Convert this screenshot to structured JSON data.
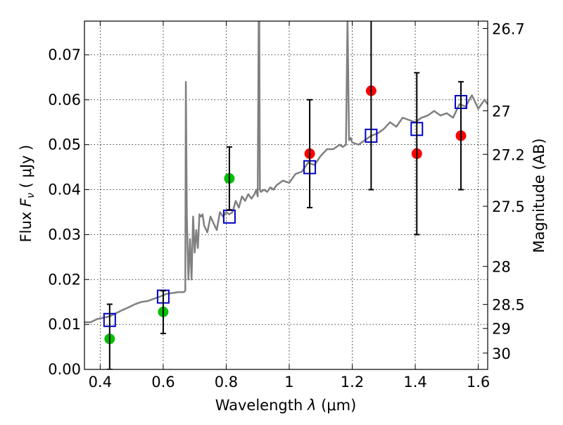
{
  "chart_data": {
    "type": "scatter",
    "xlabel_prefix": "Wavelength ",
    "xlabel_symbol": "λ",
    "xlabel_unit": " (μm)",
    "ylabel_prefix": "Flux ",
    "ylabel_symbol": "F",
    "ylabel_subscript": "ν",
    "ylabel_unit": " ( μJy )",
    "ylabel_right": "Magnitude (AB)",
    "xlim": [
      0.35,
      1.63
    ],
    "ylim": [
      0.0,
      0.0775
    ],
    "grid": true,
    "x_ticks": [
      {
        "value": 0.4,
        "label": "0.4"
      },
      {
        "value": 0.6,
        "label": "0.6"
      },
      {
        "value": 0.8,
        "label": "0.8"
      },
      {
        "value": 1.0,
        "label": "1"
      },
      {
        "value": 1.2,
        "label": "1.2"
      },
      {
        "value": 1.4,
        "label": "1.4"
      },
      {
        "value": 1.6,
        "label": "1.6"
      }
    ],
    "y_ticks": [
      {
        "value": 0.0,
        "label": "0.00"
      },
      {
        "value": 0.01,
        "label": "0.01"
      },
      {
        "value": 0.02,
        "label": "0.02"
      },
      {
        "value": 0.03,
        "label": "0.03"
      },
      {
        "value": 0.04,
        "label": "0.04"
      },
      {
        "value": 0.05,
        "label": "0.05"
      },
      {
        "value": 0.06,
        "label": "0.06"
      },
      {
        "value": 0.07,
        "label": "0.07"
      }
    ],
    "right_ticks": [
      {
        "value": 26.7,
        "label": "26.7"
      },
      {
        "value": 27.0,
        "label": "27"
      },
      {
        "value": 27.2,
        "label": "27.2"
      },
      {
        "value": 27.5,
        "label": "27.5"
      },
      {
        "value": 28.0,
        "label": "28"
      },
      {
        "value": 28.5,
        "label": "28.5"
      },
      {
        "value": 29.0,
        "label": "29"
      },
      {
        "value": 30.0,
        "label": "30"
      }
    ],
    "series": [
      {
        "kind": "line",
        "color": "#808080",
        "x": [
          0.35,
          0.37,
          0.39,
          0.41,
          0.43,
          0.45,
          0.47,
          0.49,
          0.51,
          0.53,
          0.55,
          0.57,
          0.59,
          0.61,
          0.63,
          0.65,
          0.665,
          0.67,
          0.672,
          0.675,
          0.68,
          0.685,
          0.69,
          0.695,
          0.7,
          0.705,
          0.71,
          0.715,
          0.72,
          0.725,
          0.73,
          0.74,
          0.75,
          0.76,
          0.77,
          0.78,
          0.79,
          0.8,
          0.81,
          0.82,
          0.83,
          0.84,
          0.85,
          0.86,
          0.87,
          0.88,
          0.89,
          0.895,
          0.9,
          0.903,
          0.905,
          0.907,
          0.91,
          0.92,
          0.93,
          0.94,
          0.95,
          0.96,
          0.98,
          1.0,
          1.02,
          1.04,
          1.06,
          1.08,
          1.1,
          1.12,
          1.14,
          1.16,
          1.17,
          1.18,
          1.185,
          1.19,
          1.195,
          1.2,
          1.22,
          1.24,
          1.26,
          1.28,
          1.3,
          1.32,
          1.34,
          1.36,
          1.38,
          1.4,
          1.42,
          1.44,
          1.46,
          1.48,
          1.5,
          1.52,
          1.54,
          1.56,
          1.58,
          1.6,
          1.62,
          1.63
        ],
        "y": [
          0.0105,
          0.0105,
          0.0112,
          0.0115,
          0.0118,
          0.0125,
          0.0132,
          0.0138,
          0.0145,
          0.015,
          0.0152,
          0.0157,
          0.0162,
          0.0168,
          0.017,
          0.0172,
          0.0172,
          0.0175,
          0.064,
          0.034,
          0.02,
          0.029,
          0.02,
          0.034,
          0.026,
          0.031,
          0.027,
          0.0345,
          0.034,
          0.0345,
          0.032,
          0.0305,
          0.034,
          0.0325,
          0.031,
          0.035,
          0.034,
          0.035,
          0.0345,
          0.035,
          0.0375,
          0.036,
          0.0385,
          0.0375,
          0.039,
          0.038,
          0.039,
          0.04,
          0.0385,
          0.078,
          0.078,
          0.04,
          0.0395,
          0.04,
          0.0395,
          0.0405,
          0.04,
          0.041,
          0.042,
          0.0415,
          0.0435,
          0.044,
          0.046,
          0.0455,
          0.0475,
          0.049,
          0.049,
          0.05,
          0.0495,
          0.05,
          0.078,
          0.051,
          0.0515,
          0.0505,
          0.05,
          0.051,
          0.052,
          0.0525,
          0.0535,
          0.055,
          0.054,
          0.056,
          0.0555,
          0.055,
          0.056,
          0.0565,
          0.0575,
          0.0565,
          0.057,
          0.056,
          0.059,
          0.0585,
          0.061,
          0.058,
          0.06,
          0.059
        ]
      },
      {
        "kind": "points",
        "marker": "circle",
        "color": "#00c000",
        "x": [
          0.43,
          0.6,
          0.81
        ],
        "y": [
          0.0068,
          0.0128,
          0.0425
        ]
      },
      {
        "kind": "points",
        "marker": "circle",
        "color": "#ff0000",
        "x": [
          1.065,
          1.26,
          1.405,
          1.545
        ],
        "y": [
          0.048,
          0.062,
          0.048,
          0.052
        ]
      },
      {
        "kind": "points",
        "marker": "square",
        "color": "#0000cc",
        "x": [
          0.43,
          0.6,
          0.81,
          1.065,
          1.26,
          1.405,
          1.545
        ],
        "y": [
          0.011,
          0.0162,
          0.034,
          0.045,
          0.052,
          0.0535,
          0.0595
        ]
      },
      {
        "kind": "errorbars",
        "color": "#000000",
        "x": [
          0.43,
          0.6,
          0.81,
          1.065,
          1.26,
          1.405,
          1.545
        ],
        "low": [
          0.0,
          0.008,
          0.0355,
          0.036,
          0.04,
          0.03,
          0.04
        ],
        "high": [
          0.0145,
          0.0175,
          0.0495,
          0.06,
          0.078,
          0.066,
          0.064
        ]
      }
    ]
  }
}
